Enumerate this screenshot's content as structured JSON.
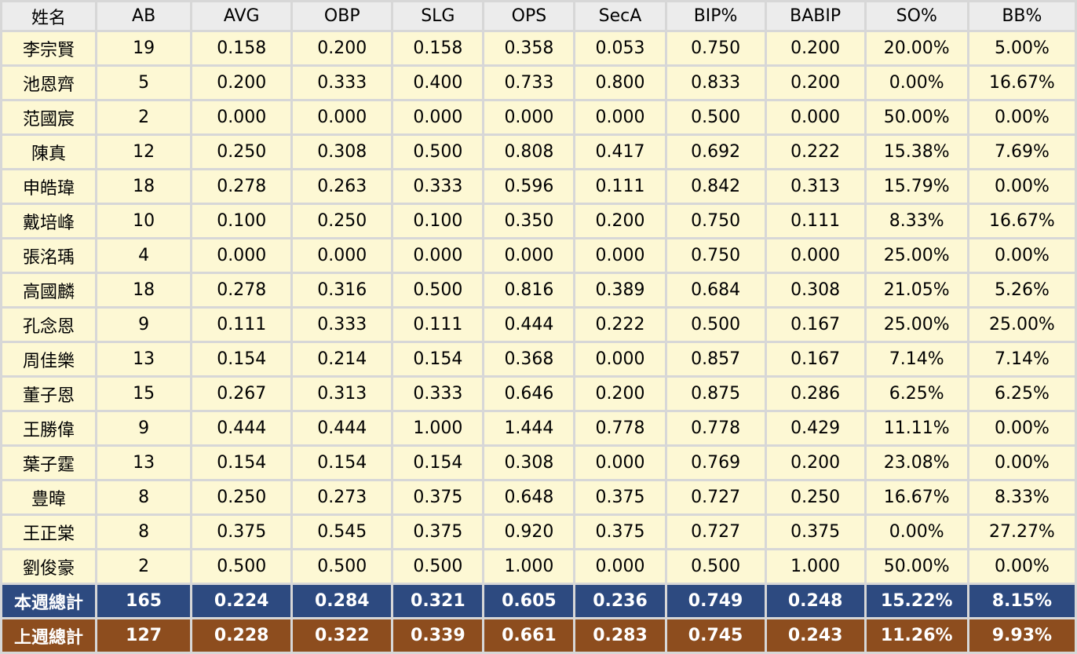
{
  "headers": [
    "姓名",
    "AB",
    "AVG",
    "OBP",
    "SLG",
    "OPS",
    "SecA",
    "BIP%",
    "BABIP",
    "SO%",
    "BB%"
  ],
  "rows": [
    [
      "李宗賢",
      "19",
      "0.158",
      "0.200",
      "0.158",
      "0.358",
      "0.053",
      "0.750",
      "0.200",
      "20.00%",
      "5.00%"
    ],
    [
      "池恩齊",
      "5",
      "0.200",
      "0.333",
      "0.400",
      "0.733",
      "0.800",
      "0.833",
      "0.200",
      "0.00%",
      "16.67%"
    ],
    [
      "范國宸",
      "2",
      "0.000",
      "0.000",
      "0.000",
      "0.000",
      "0.000",
      "0.500",
      "0.000",
      "50.00%",
      "0.00%"
    ],
    [
      "陳真",
      "12",
      "0.250",
      "0.308",
      "0.500",
      "0.808",
      "0.417",
      "0.692",
      "0.222",
      "15.38%",
      "7.69%"
    ],
    [
      "申皓瑋",
      "18",
      "0.278",
      "0.263",
      "0.333",
      "0.596",
      "0.111",
      "0.842",
      "0.313",
      "15.79%",
      "0.00%"
    ],
    [
      "戴培峰",
      "10",
      "0.100",
      "0.250",
      "0.100",
      "0.350",
      "0.200",
      "0.750",
      "0.111",
      "8.33%",
      "16.67%"
    ],
    [
      "張洺瑀",
      "4",
      "0.000",
      "0.000",
      "0.000",
      "0.000",
      "0.000",
      "0.750",
      "0.000",
      "25.00%",
      "0.00%"
    ],
    [
      "高國麟",
      "18",
      "0.278",
      "0.316",
      "0.500",
      "0.816",
      "0.389",
      "0.684",
      "0.308",
      "21.05%",
      "5.26%"
    ],
    [
      "孔念恩",
      "9",
      "0.111",
      "0.333",
      "0.111",
      "0.444",
      "0.222",
      "0.500",
      "0.167",
      "25.00%",
      "25.00%"
    ],
    [
      "周佳樂",
      "13",
      "0.154",
      "0.214",
      "0.154",
      "0.368",
      "0.000",
      "0.857",
      "0.167",
      "7.14%",
      "7.14%"
    ],
    [
      "董子恩",
      "15",
      "0.267",
      "0.313",
      "0.333",
      "0.646",
      "0.200",
      "0.875",
      "0.286",
      "6.25%",
      "6.25%"
    ],
    [
      "王勝偉",
      "9",
      "0.444",
      "0.444",
      "1.000",
      "1.444",
      "0.778",
      "0.778",
      "0.429",
      "11.11%",
      "0.00%"
    ],
    [
      "葉子霆",
      "13",
      "0.154",
      "0.154",
      "0.154",
      "0.308",
      "0.000",
      "0.769",
      "0.200",
      "23.08%",
      "0.00%"
    ],
    [
      "豊暐",
      "8",
      "0.250",
      "0.273",
      "0.375",
      "0.648",
      "0.375",
      "0.727",
      "0.250",
      "16.67%",
      "8.33%"
    ],
    [
      "王正棠",
      "8",
      "0.375",
      "0.545",
      "0.375",
      "0.920",
      "0.375",
      "0.727",
      "0.375",
      "0.00%",
      "27.27%"
    ],
    [
      "劉俊豪",
      "2",
      "0.500",
      "0.500",
      "0.500",
      "1.000",
      "0.000",
      "0.500",
      "1.000",
      "50.00%",
      "0.00%"
    ]
  ],
  "totals": [
    {
      "label_key": "this_week",
      "cells": [
        "本週總計",
        "165",
        "0.224",
        "0.284",
        "0.321",
        "0.605",
        "0.236",
        "0.749",
        "0.248",
        "15.22%",
        "8.15%"
      ]
    },
    {
      "label_key": "last_week",
      "cells": [
        "上週總計",
        "127",
        "0.228",
        "0.322",
        "0.339",
        "0.661",
        "0.283",
        "0.745",
        "0.243",
        "11.26%",
        "9.93%"
      ]
    }
  ],
  "colors": {
    "header_bg": "#ececec",
    "row_bg": "#fdf8d4",
    "grid": "#d7d7d7",
    "this_week_bg": "#2d4a80",
    "last_week_bg": "#8d4d1e"
  }
}
